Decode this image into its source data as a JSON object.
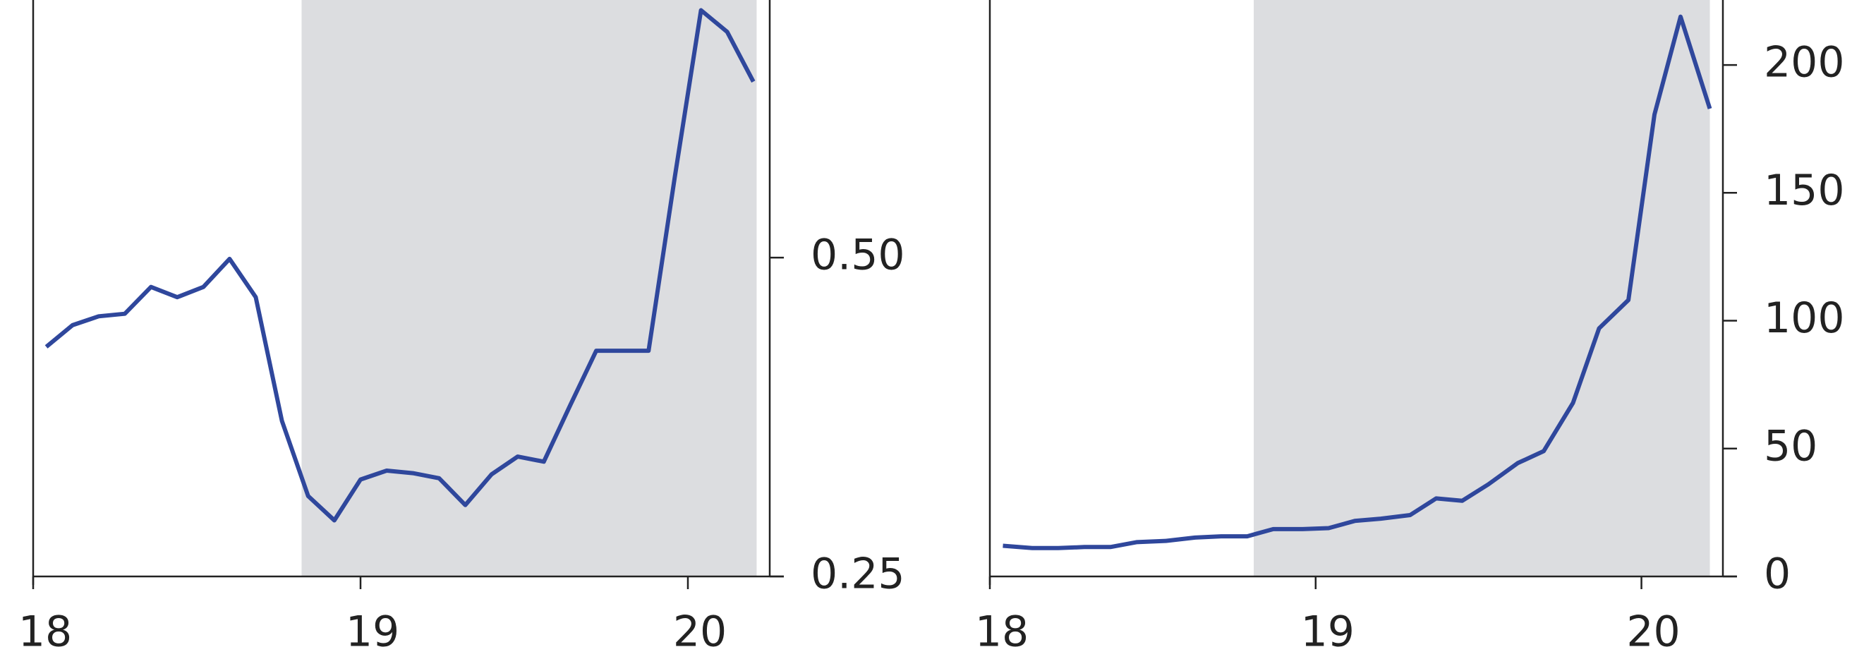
{
  "chart_data": [
    {
      "type": "line",
      "x": [
        18.04,
        18.12,
        18.2,
        18.28,
        18.36,
        18.44,
        18.52,
        18.6,
        18.68,
        18.76,
        18.84,
        18.92,
        19.0,
        19.08,
        19.16,
        19.24,
        19.32,
        19.4,
        19.48,
        19.56,
        19.64,
        19.72,
        19.8,
        19.88,
        19.96,
        20.04,
        20.12,
        20.2
      ],
      "series": [
        {
          "color": "#2f479c",
          "values": [
            0.43,
            0.447,
            0.454,
            0.456,
            0.477,
            0.469,
            0.477,
            0.499,
            0.469,
            0.372,
            0.313,
            0.294,
            0.326,
            0.333,
            0.331,
            0.327,
            0.306,
            0.33,
            0.344,
            0.34,
            0.384,
            0.427,
            0.427,
            0.427,
            0.563,
            0.694,
            0.677,
            0.638
          ]
        }
      ],
      "xlim": [
        18,
        20.25
      ],
      "xticks": [
        18,
        19,
        20
      ],
      "ylim": [
        0.25,
        0.702
      ],
      "yticks": [
        {
          "value": 0.25,
          "label": "0.25"
        },
        {
          "value": 0.5,
          "label": "0.50"
        }
      ],
      "y_axis_side": "right",
      "shaded_x": [
        18.82,
        20.21
      ],
      "shade_color": "#dcdde0"
    },
    {
      "type": "line",
      "x": [
        18.04,
        18.13,
        18.21,
        18.29,
        18.37,
        18.45,
        18.54,
        18.63,
        18.71,
        18.79,
        18.87,
        18.96,
        19.04,
        19.12,
        19.2,
        19.29,
        19.37,
        19.45,
        19.53,
        19.62,
        19.7,
        19.79,
        19.87,
        19.96,
        20.04,
        20.12,
        20.21
      ],
      "series": [
        {
          "color": "#2f479c",
          "values": [
            12,
            11.1,
            11.1,
            11.5,
            11.5,
            13.4,
            13.9,
            15.2,
            15.7,
            15.7,
            18.5,
            18.5,
            18.9,
            21.7,
            22.6,
            24,
            30.5,
            29.6,
            36,
            44.3,
            49,
            67.9,
            97,
            108.1,
            180.6,
            218.9,
            182.9
          ]
        }
      ],
      "xlim": [
        18,
        20.25
      ],
      "xticks": [
        18,
        19,
        20
      ],
      "ylim": [
        0,
        225.4
      ],
      "yticks": [
        0,
        50,
        100,
        150,
        200
      ],
      "y_axis_side": "right",
      "shaded_x": [
        18.81,
        20.21
      ],
      "shade_color": "#dcdde0"
    }
  ]
}
